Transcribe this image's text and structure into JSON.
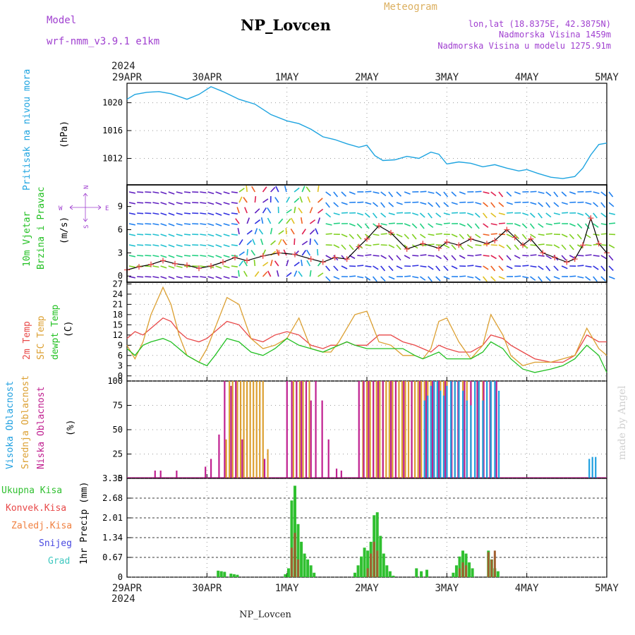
{
  "header": {
    "model_label": "Model",
    "model_name": "wrf-nmm_v3.9.1  e1km",
    "station": "NP_Lovcen",
    "product": "Meteogram",
    "lonlat": "lon,lat (18.8375E, 42.3875N)",
    "elev": "Nadmorska Visina 1459m",
    "elev_model": "Nadmorska Visina u modelu 1275.91m"
  },
  "footer": {
    "station": "NP_Lovcen",
    "watermark": "made by Angel"
  },
  "time_axis": {
    "year": "2024",
    "labels": [
      "29APR",
      "30APR",
      "1MAY",
      "2MAY",
      "3MAY",
      "4MAY",
      "5MAY"
    ]
  },
  "colors": {
    "pressure": "#1ea4e0",
    "temp2m": "#e84848",
    "sfc": "#dca032",
    "dew": "#22c022",
    "high_cloud": "#20a0e0",
    "mid_cloud": "#dca032",
    "low_cloud": "#c02090",
    "precip_total": "#30c030",
    "precip_conv": "#e84848",
    "model_purple": "#a040d0"
  },
  "chart_data": [
    {
      "type": "line",
      "ylabel_left": "Pritisak na nivou mora",
      "unit": "(hPa)",
      "ylim": [
        1008.2,
        1022.8
      ],
      "yticks": [
        1012,
        1016,
        1020
      ],
      "x_days": [
        0,
        0.1,
        0.25,
        0.4,
        0.55,
        0.75,
        0.9,
        1.05,
        1.2,
        1.4,
        1.6,
        1.8,
        2.0,
        2.15,
        2.3,
        2.45,
        2.6,
        2.75,
        2.9,
        3.0,
        3.1,
        3.2,
        3.35,
        3.5,
        3.65,
        3.8,
        3.9,
        4.0,
        4.15,
        4.3,
        4.45,
        4.6,
        4.75,
        4.9,
        5.0,
        5.15,
        5.3,
        5.45,
        5.6,
        5.7,
        5.8,
        5.9,
        6.0
      ],
      "series": [
        {
          "values": [
            1020.5,
            1021.2,
            1021.5,
            1021.6,
            1021.3,
            1020.5,
            1021.2,
            1022.3,
            1021.6,
            1020.5,
            1019.8,
            1018.3,
            1017.4,
            1017.0,
            1016.2,
            1015.1,
            1014.7,
            1014.1,
            1013.6,
            1013.9,
            1012.4,
            1011.7,
            1011.8,
            1012.3,
            1012.0,
            1012.9,
            1012.6,
            1011.2,
            1011.5,
            1011.3,
            1010.8,
            1011.1,
            1010.6,
            1010.2,
            1010.4,
            1009.8,
            1009.3,
            1009.1,
            1009.4,
            1010.6,
            1012.5,
            1014.0,
            1014.2
          ]
        }
      ]
    },
    {
      "type": "line",
      "ylabel_left": "10m Vjetar Brzina i Pravac",
      "unit": "(m/s)",
      "compass": {
        "n": "N",
        "s": "S",
        "e": "E",
        "w": "W"
      },
      "ylim": [
        -0.8,
        11.8
      ],
      "yticks": [
        0,
        3,
        6,
        9
      ],
      "x_days": [
        0,
        0.15,
        0.3,
        0.45,
        0.6,
        0.75,
        0.9,
        1.05,
        1.2,
        1.35,
        1.5,
        1.7,
        1.9,
        2.1,
        2.3,
        2.45,
        2.6,
        2.75,
        2.9,
        3.0,
        3.15,
        3.3,
        3.5,
        3.7,
        3.9,
        4.0,
        4.15,
        4.3,
        4.5,
        4.6,
        4.75,
        4.85,
        4.95,
        5.05,
        5.2,
        5.35,
        5.5,
        5.6,
        5.7,
        5.8,
        5.9,
        6.0
      ],
      "series": [
        {
          "values": [
            0.8,
            1.2,
            1.5,
            2.0,
            1.6,
            1.4,
            1.0,
            1.3,
            1.8,
            2.4,
            2.0,
            2.6,
            3.0,
            2.8,
            2.2,
            1.8,
            2.4,
            2.2,
            3.8,
            4.8,
            6.5,
            5.6,
            3.5,
            4.2,
            3.6,
            4.4,
            4.0,
            4.8,
            4.2,
            4.6,
            6.0,
            5.0,
            4.0,
            4.8,
            3.0,
            2.4,
            1.8,
            2.2,
            4.0,
            7.5,
            4.2,
            3.0
          ]
        }
      ]
    },
    {
      "type": "line",
      "ylabels_left": [
        "2m Temp",
        "SFC Temp",
        "dewpt Temp"
      ],
      "unit": "(C)",
      "ylim": [
        -1.5,
        27.5
      ],
      "yticks": [
        0,
        3,
        6,
        9,
        12,
        15,
        18,
        21,
        24,
        27
      ],
      "x_days": [
        0,
        0.1,
        0.2,
        0.3,
        0.45,
        0.55,
        0.65,
        0.75,
        0.9,
        1.0,
        1.1,
        1.25,
        1.4,
        1.55,
        1.7,
        1.85,
        2.0,
        2.15,
        2.3,
        2.45,
        2.55,
        2.65,
        2.75,
        2.85,
        3.0,
        3.15,
        3.3,
        3.45,
        3.6,
        3.7,
        3.8,
        3.9,
        4.0,
        4.15,
        4.3,
        4.45,
        4.55,
        4.7,
        4.8,
        4.95,
        5.1,
        5.3,
        5.45,
        5.6,
        5.75,
        5.9,
        6.0
      ],
      "series": [
        {
          "name": "2m Temp",
          "values": [
            11,
            13,
            12,
            14,
            17,
            16,
            13,
            11,
            10,
            11,
            13,
            16,
            15,
            11,
            10,
            12,
            13,
            12,
            9,
            8,
            9,
            9,
            10,
            9,
            9,
            12,
            12,
            10,
            9,
            8,
            7,
            9,
            8,
            7,
            7,
            9,
            12,
            11,
            9,
            7,
            5,
            4,
            4,
            6,
            12,
            10,
            10
          ]
        },
        {
          "name": "SFC Temp",
          "values": [
            9,
            5,
            10,
            18,
            26,
            21,
            12,
            6,
            4,
            8,
            14,
            23,
            21,
            11,
            8,
            9,
            11,
            17,
            8,
            7,
            7,
            10,
            14,
            18,
            19,
            10,
            9,
            6,
            6,
            5,
            8,
            16,
            17,
            10,
            5,
            9,
            18,
            12,
            6,
            3,
            4,
            4,
            5,
            6,
            14,
            8,
            6
          ]
        },
        {
          "name": "dewpt Temp",
          "values": [
            8,
            6,
            9,
            10,
            11,
            10,
            8,
            6,
            4,
            3,
            6,
            11,
            10,
            7,
            6,
            8,
            11,
            9,
            8,
            7,
            8,
            9,
            10,
            9,
            8,
            8,
            8,
            8,
            6,
            5,
            6,
            7,
            5,
            5,
            5,
            7,
            10,
            8,
            5,
            2,
            1,
            2,
            3,
            5,
            9,
            6,
            1
          ]
        }
      ]
    },
    {
      "type": "bar",
      "ylabels_left": [
        "Visoka Oblacnost",
        "Srednja Oblacnost",
        "Niska Oblacnost"
      ],
      "unit": "(%)",
      "ylim": [
        0,
        100
      ],
      "yticks": [
        0,
        25,
        50,
        75,
        100
      ],
      "series": [
        {
          "name": "Visoka Oblacnost",
          "x_days": [
            3.72,
            3.76,
            3.8,
            3.84,
            3.88,
            3.92,
            3.96,
            4.0,
            4.05,
            4.1,
            4.15,
            4.2,
            4.25,
            4.3,
            4.35,
            4.4,
            4.45,
            4.5,
            4.55,
            4.6,
            4.65,
            5.78,
            5.82,
            5.86
          ],
          "values": [
            80,
            85,
            95,
            100,
            100,
            90,
            85,
            95,
            100,
            100,
            100,
            90,
            80,
            75,
            100,
            100,
            80,
            100,
            100,
            100,
            90,
            20,
            22,
            22
          ]
        },
        {
          "name": "Srednja Oblacnost",
          "x_days": [
            1.24,
            1.28,
            1.32,
            1.38,
            1.42,
            1.46,
            1.5,
            1.54,
            1.58,
            1.62,
            1.66,
            1.7,
            1.76,
            2.08,
            2.12,
            2.16,
            2.2,
            2.28,
            2.95,
            3.0,
            3.04,
            3.08,
            3.12,
            3.16,
            3.2,
            3.24,
            3.28,
            3.32,
            3.4,
            3.44,
            3.48,
            3.52,
            3.56,
            3.6,
            3.64,
            3.68,
            3.72,
            3.76,
            3.8,
            3.84,
            3.88,
            3.92,
            3.96,
            4.0,
            4.05,
            4.1,
            4.15,
            4.2,
            4.25,
            4.3,
            4.35,
            4.4,
            4.45,
            4.5,
            4.55
          ],
          "values": [
            40,
            100,
            100,
            100,
            100,
            100,
            100,
            100,
            100,
            100,
            100,
            100,
            30,
            100,
            100,
            100,
            100,
            100,
            100,
            100,
            100,
            100,
            100,
            100,
            100,
            100,
            100,
            100,
            100,
            100,
            100,
            100,
            100,
            100,
            100,
            100,
            100,
            100,
            100,
            100,
            100,
            100,
            100,
            100,
            100,
            100,
            100,
            100,
            100,
            100,
            100,
            100,
            100,
            100,
            100
          ]
        },
        {
          "name": "Niska Oblacnost",
          "x_days": [
            0.35,
            0.42,
            0.62,
            0.98,
            1.05,
            1.15,
            1.22,
            1.3,
            1.36,
            1.44,
            1.72,
            2.0,
            2.06,
            2.12,
            2.18,
            2.24,
            2.3,
            2.36,
            2.44,
            2.52,
            2.62,
            2.68,
            2.9,
            2.96,
            3.02,
            3.08,
            3.14,
            3.2,
            3.3,
            3.36,
            3.46,
            3.56,
            3.66,
            3.74,
            3.82,
            3.9,
            3.98,
            4.06,
            4.14,
            4.22,
            4.3,
            4.38,
            4.46,
            4.54,
            4.62
          ],
          "values": [
            8,
            8,
            8,
            12,
            20,
            45,
            100,
            95,
            100,
            40,
            20,
            100,
            100,
            100,
            100,
            100,
            80,
            100,
            80,
            40,
            10,
            8,
            100,
            100,
            100,
            100,
            100,
            100,
            100,
            100,
            100,
            100,
            100,
            100,
            100,
            100,
            100,
            100,
            100,
            100,
            100,
            100,
            100,
            100,
            100
          ]
        }
      ]
    },
    {
      "type": "bar",
      "ylabels_left": [
        "Ukupna Kisa",
        "Konvek.Kisa",
        "Zaledj.Kisa",
        "Snijeg",
        "Grad"
      ],
      "unit": "1hr Precip (mm)",
      "ylim": [
        0,
        3.35
      ],
      "yticks": [
        0,
        0.67,
        1.34,
        2.01,
        2.68,
        3.35
      ],
      "series": [
        {
          "name": "Ukupna Kisa",
          "x_days": [
            1.14,
            1.18,
            1.22,
            1.3,
            1.34,
            1.38,
            1.98,
            2.02,
            2.06,
            2.1,
            2.14,
            2.18,
            2.22,
            2.26,
            2.3,
            2.34,
            2.85,
            2.89,
            2.93,
            2.97,
            3.01,
            3.05,
            3.09,
            3.13,
            3.17,
            3.21,
            3.25,
            3.29,
            3.33,
            3.62,
            3.68,
            3.75,
            4.08,
            4.12,
            4.16,
            4.2,
            4.24,
            4.28,
            4.32,
            4.52,
            4.56,
            4.6,
            4.64
          ],
          "values": [
            0.22,
            0.2,
            0.18,
            0.12,
            0.1,
            0.08,
            0.1,
            0.3,
            2.6,
            3.1,
            1.8,
            1.2,
            0.8,
            0.6,
            0.4,
            0.15,
            0.15,
            0.4,
            0.7,
            1.0,
            0.9,
            1.2,
            2.1,
            2.2,
            1.4,
            0.8,
            0.4,
            0.2,
            0.05,
            0.3,
            0.2,
            0.25,
            0.15,
            0.4,
            0.7,
            0.9,
            0.8,
            0.5,
            0.3,
            0.9,
            0.6,
            0.3,
            0.2
          ]
        },
        {
          "name": "Konvek.Kisa",
          "x_days": [
            2.06,
            2.1,
            2.14,
            3.01,
            3.05,
            3.09,
            3.13,
            4.16,
            4.2,
            4.24,
            4.52,
            4.56,
            4.6
          ],
          "values": [
            1.0,
            1.5,
            0.6,
            0.3,
            0.8,
            1.2,
            0.9,
            0.3,
            0.5,
            0.4,
            0.85,
            0.6,
            0.9
          ]
        }
      ]
    }
  ]
}
